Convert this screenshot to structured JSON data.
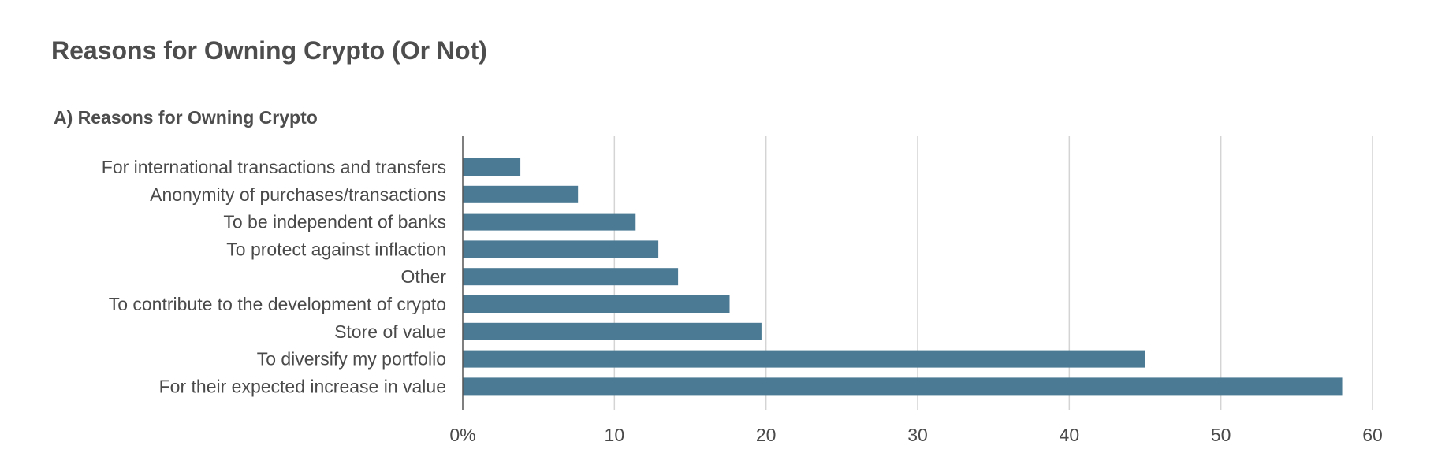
{
  "title": "Reasons for Owning Crypto (Or Not)",
  "panel_title": "A) Reasons for Owning Crypto",
  "colors": {
    "bar": "#4a7a94",
    "text": "#4a4a4a",
    "grid": "#d4d4d4"
  },
  "chart_data": {
    "type": "bar",
    "orientation": "horizontal",
    "title": "A) Reasons for Owning Crypto",
    "categories": [
      "For international transactions and transfers",
      "Anonymity of purchases/transactions",
      "To be independent of banks",
      "To protect against inflaction",
      "Other",
      "To contribute to the development of crypto",
      "Store of value",
      "To diversify my portfolio",
      "For their expected increase in value"
    ],
    "values": [
      3.8,
      7.6,
      11.4,
      12.9,
      14.2,
      17.6,
      19.7,
      45,
      58
    ],
    "xlim": [
      0,
      60
    ],
    "xticks": [
      0,
      10,
      20,
      30,
      40,
      50,
      60
    ],
    "xtick_labels": [
      "0%",
      "10",
      "20",
      "30",
      "40",
      "50",
      "60"
    ],
    "xlabel": "",
    "ylabel": "",
    "grid": true,
    "legend": "none"
  }
}
